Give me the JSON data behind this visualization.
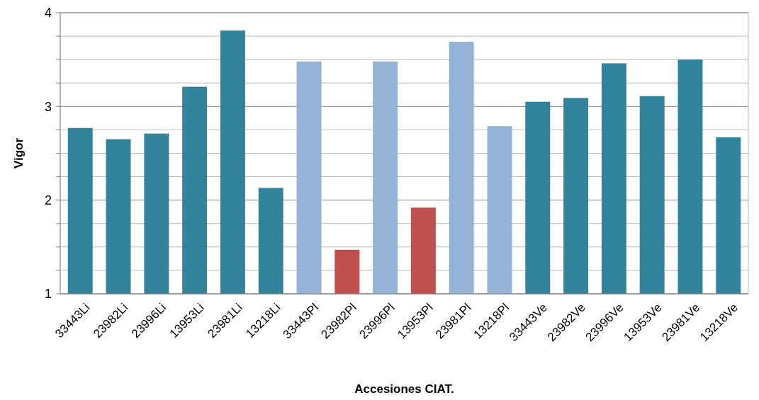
{
  "chart_data": {
    "type": "bar",
    "xlabel": "Accesiones CIAT.",
    "ylabel": "Vigor",
    "categories": [
      "33443Li",
      "23982Li",
      "23996Li",
      "13953Li",
      "23981Li",
      "13218Li",
      "33443Pl",
      "23982Pl",
      "23996Pl",
      "13953Pl",
      "23981Pl",
      "13218Pl",
      "33443Ve",
      "23982Ve",
      "23996Ve",
      "13953Ve",
      "23981Ve",
      "13218Ve"
    ],
    "values": [
      2.77,
      2.65,
      2.71,
      3.21,
      3.81,
      2.13,
      3.48,
      1.47,
      3.48,
      1.92,
      3.69,
      2.79,
      3.05,
      3.09,
      3.46,
      3.11,
      3.5,
      2.67
    ],
    "colors": [
      "#31849b",
      "#31849b",
      "#31849b",
      "#31849b",
      "#31849b",
      "#31849b",
      "#95b3d7",
      "#c0504d",
      "#95b3d7",
      "#c0504d",
      "#95b3d7",
      "#95b3d7",
      "#31849b",
      "#31849b",
      "#31849b",
      "#31849b",
      "#31849b",
      "#31849b"
    ],
    "ylim": [
      1,
      4
    ],
    "yticks": [
      1,
      {
        "value": 1.25,
        "label": null
      },
      {
        "value": 1.5,
        "label": null
      },
      {
        "value": 1.75,
        "label": null
      },
      2,
      {
        "value": 2.25,
        "label": null
      },
      {
        "value": 2.5,
        "label": null
      },
      {
        "value": 2.75,
        "label": null
      },
      3,
      {
        "value": 3.25,
        "label": null
      },
      {
        "value": 3.5,
        "label": null
      },
      {
        "value": 3.75,
        "label": null
      },
      4
    ],
    "grid": "y"
  }
}
